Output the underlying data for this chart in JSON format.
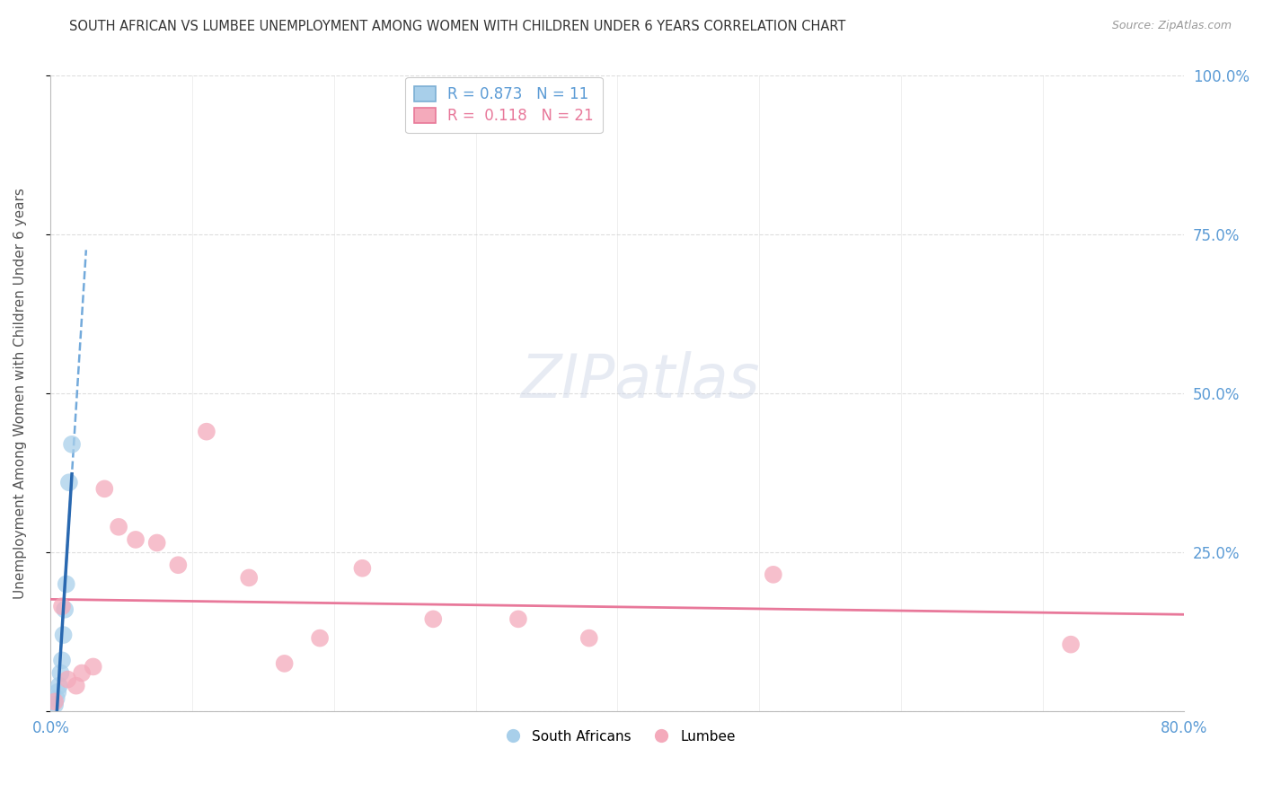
{
  "title": "SOUTH AFRICAN VS LUMBEE UNEMPLOYMENT AMONG WOMEN WITH CHILDREN UNDER 6 YEARS CORRELATION CHART",
  "source": "Source: ZipAtlas.com",
  "xlim": [
    0.0,
    0.8
  ],
  "ylim": [
    0.0,
    1.0
  ],
  "ylabel": "Unemployment Among Women with Children Under 6 years",
  "legend_blue_label": "R = 0.873   N = 11",
  "legend_pink_label": "R =  0.118   N = 21",
  "legend_south_africans": "South Africans",
  "legend_lumbee": "Lumbee",
  "blue_scatter_color": "#A8CFEA",
  "pink_scatter_color": "#F4AABB",
  "blue_line_color": "#5B9BD5",
  "blue_solid_color": "#2968B0",
  "pink_line_color": "#E8789A",
  "background_color": "#FFFFFF",
  "grid_color": "#C8C8C8",
  "title_color": "#333333",
  "source_color": "#999999",
  "tick_color": "#5B9BD5",
  "ylabel_color": "#555555",
  "sa_x": [
    0.003,
    0.004,
    0.005,
    0.006,
    0.007,
    0.008,
    0.009,
    0.01,
    0.011,
    0.013,
    0.015
  ],
  "sa_y": [
    0.01,
    0.02,
    0.03,
    0.04,
    0.06,
    0.08,
    0.12,
    0.16,
    0.2,
    0.36,
    0.42
  ],
  "lumbee_x": [
    0.003,
    0.008,
    0.012,
    0.018,
    0.022,
    0.03,
    0.038,
    0.048,
    0.06,
    0.075,
    0.09,
    0.11,
    0.14,
    0.165,
    0.19,
    0.22,
    0.27,
    0.33,
    0.38,
    0.51,
    0.72
  ],
  "lumbee_y": [
    0.015,
    0.165,
    0.05,
    0.04,
    0.06,
    0.07,
    0.35,
    0.29,
    0.27,
    0.265,
    0.23,
    0.44,
    0.21,
    0.075,
    0.115,
    0.225,
    0.145,
    0.145,
    0.115,
    0.215,
    0.105
  ],
  "ytick_vals": [
    0.0,
    0.25,
    0.5,
    0.75,
    1.0
  ],
  "ytick_labels_right": [
    "",
    "25.0%",
    "50.0%",
    "75.0%",
    "100.0%"
  ],
  "xtick_vals": [
    0.0,
    0.8
  ],
  "xtick_labels": [
    "0.0%",
    "80.0%"
  ],
  "minor_xtick_vals": [
    0.0,
    0.1,
    0.2,
    0.3,
    0.4,
    0.5,
    0.6,
    0.7,
    0.8
  ]
}
